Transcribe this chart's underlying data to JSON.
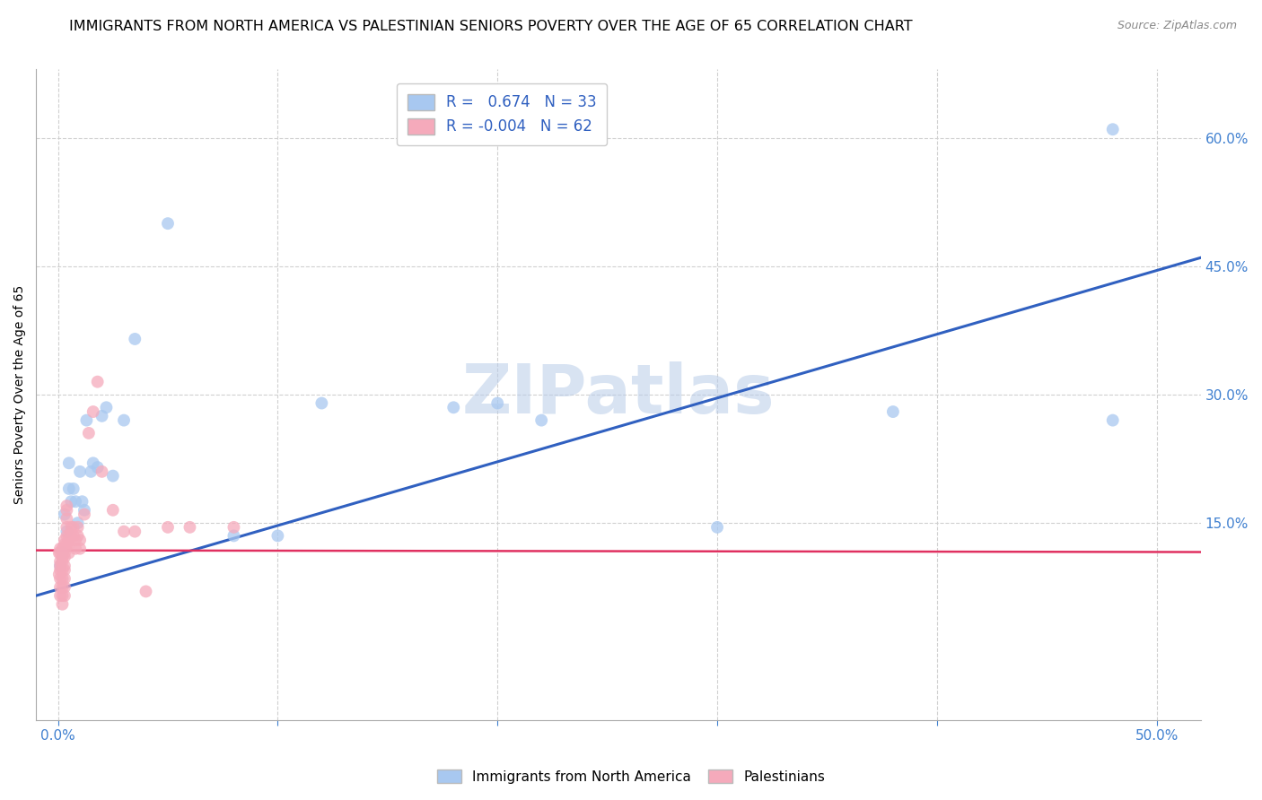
{
  "title": "IMMIGRANTS FROM NORTH AMERICA VS PALESTINIAN SENIORS POVERTY OVER THE AGE OF 65 CORRELATION CHART",
  "source": "Source: ZipAtlas.com",
  "ylabel": "Seniors Poverty Over the Age of 65",
  "watermark": "ZIPatlas",
  "xlim": [
    -0.01,
    0.52
  ],
  "ylim": [
    -0.08,
    0.68
  ],
  "xticks_major": [
    0.0,
    0.1,
    0.2,
    0.3,
    0.4,
    0.5
  ],
  "xticks_labeled": [
    0.0,
    0.5
  ],
  "xtick_labels_show": [
    "0.0%",
    "50.0%"
  ],
  "yticks_right": [
    0.15,
    0.3,
    0.45,
    0.6
  ],
  "ytick_labels_right": [
    "15.0%",
    "30.0%",
    "45.0%",
    "60.0%"
  ],
  "blue_R": 0.674,
  "blue_N": 33,
  "pink_R": -0.004,
  "pink_N": 62,
  "blue_color": "#a8c8f0",
  "pink_color": "#f5aabb",
  "blue_line_color": "#3060c0",
  "pink_line_color": "#e03060",
  "legend_label_blue": "Immigrants from North America",
  "legend_label_pink": "Palestinians",
  "blue_scatter_x": [
    0.001,
    0.002,
    0.003,
    0.004,
    0.005,
    0.005,
    0.006,
    0.007,
    0.008,
    0.009,
    0.01,
    0.011,
    0.012,
    0.013,
    0.015,
    0.016,
    0.018,
    0.02,
    0.022,
    0.025,
    0.03,
    0.035,
    0.05,
    0.08,
    0.1,
    0.12,
    0.18,
    0.22,
    0.38,
    0.48,
    0.48,
    0.2,
    0.3
  ],
  "blue_scatter_y": [
    0.1,
    0.115,
    0.16,
    0.14,
    0.19,
    0.22,
    0.175,
    0.19,
    0.175,
    0.15,
    0.21,
    0.175,
    0.165,
    0.27,
    0.21,
    0.22,
    0.215,
    0.275,
    0.285,
    0.205,
    0.27,
    0.365,
    0.5,
    0.135,
    0.135,
    0.29,
    0.285,
    0.27,
    0.28,
    0.27,
    0.61,
    0.29,
    0.145
  ],
  "pink_scatter_x": [
    0.0005,
    0.0005,
    0.001,
    0.001,
    0.001,
    0.001,
    0.001,
    0.001,
    0.001,
    0.001,
    0.002,
    0.002,
    0.002,
    0.002,
    0.002,
    0.002,
    0.002,
    0.002,
    0.002,
    0.002,
    0.003,
    0.003,
    0.003,
    0.003,
    0.003,
    0.003,
    0.003,
    0.003,
    0.003,
    0.003,
    0.004,
    0.004,
    0.004,
    0.004,
    0.004,
    0.004,
    0.005,
    0.005,
    0.005,
    0.005,
    0.006,
    0.006,
    0.007,
    0.007,
    0.008,
    0.008,
    0.009,
    0.009,
    0.01,
    0.01,
    0.012,
    0.014,
    0.016,
    0.018,
    0.02,
    0.025,
    0.03,
    0.035,
    0.04,
    0.05,
    0.06,
    0.08
  ],
  "pink_scatter_y": [
    0.115,
    0.09,
    0.12,
    0.115,
    0.105,
    0.1,
    0.095,
    0.085,
    0.075,
    0.065,
    0.12,
    0.115,
    0.11,
    0.105,
    0.095,
    0.085,
    0.075,
    0.065,
    0.055,
    0.115,
    0.13,
    0.125,
    0.12,
    0.115,
    0.11,
    0.1,
    0.095,
    0.085,
    0.075,
    0.065,
    0.17,
    0.165,
    0.155,
    0.145,
    0.135,
    0.125,
    0.135,
    0.13,
    0.125,
    0.115,
    0.145,
    0.135,
    0.145,
    0.135,
    0.13,
    0.12,
    0.145,
    0.135,
    0.13,
    0.12,
    0.16,
    0.255,
    0.28,
    0.315,
    0.21,
    0.165,
    0.14,
    0.14,
    0.07,
    0.145,
    0.145,
    0.145
  ],
  "blue_line_x": [
    -0.01,
    0.52
  ],
  "blue_line_y_start": 0.065,
  "blue_line_y_end": 0.46,
  "pink_line_x": [
    -0.01,
    0.52
  ],
  "pink_line_y_start": 0.118,
  "pink_line_y_end": 0.116,
  "grid_color": "#d0d0d0",
  "background_color": "#ffffff",
  "title_fontsize": 11.5,
  "axis_label_fontsize": 10,
  "tick_fontsize": 11,
  "marker_size": 100,
  "marker_alpha": 0.75
}
